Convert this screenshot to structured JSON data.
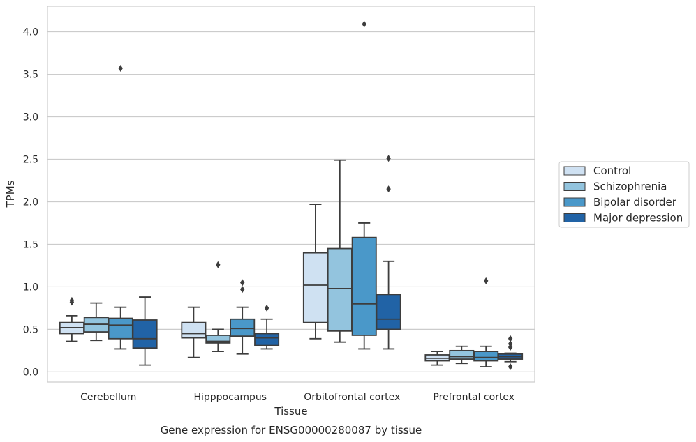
{
  "chart_data": {
    "type": "boxplot",
    "title": "",
    "caption": "Gene expression for ENSG00000280087 by tissue",
    "xlabel": "Tissue",
    "ylabel": "TPMs",
    "ylim": [
      -0.12,
      4.3
    ],
    "yticks": [
      "0.0",
      "0.5",
      "1.0",
      "1.5",
      "2.0",
      "2.5",
      "3.0",
      "3.5",
      "4.0"
    ],
    "grid": "horizontal",
    "legend_position": "right",
    "categories": [
      "Cerebellum",
      "Hipppocampus",
      "Orbitofrontal cortex",
      "Prefrontal cortex"
    ],
    "series": [
      {
        "name": "Control",
        "color": "#cfe1f2",
        "boxes": [
          {
            "whisker_low": 0.36,
            "q1": 0.45,
            "median": 0.52,
            "q3": 0.58,
            "whisker_high": 0.66,
            "outliers": [
              0.82,
              0.84
            ]
          },
          {
            "whisker_low": 0.17,
            "q1": 0.4,
            "median": 0.45,
            "q3": 0.58,
            "whisker_high": 0.76,
            "outliers": []
          },
          {
            "whisker_low": 0.39,
            "q1": 0.58,
            "median": 1.02,
            "q3": 1.4,
            "whisker_high": 1.97,
            "outliers": []
          },
          {
            "whisker_low": 0.08,
            "q1": 0.13,
            "median": 0.16,
            "q3": 0.2,
            "whisker_high": 0.24,
            "outliers": []
          }
        ]
      },
      {
        "name": "Schizophrenia",
        "color": "#93c4de",
        "boxes": [
          {
            "whisker_low": 0.37,
            "q1": 0.47,
            "median": 0.56,
            "q3": 0.64,
            "whisker_high": 0.81,
            "outliers": []
          },
          {
            "whisker_low": 0.24,
            "q1": 0.34,
            "median": 0.36,
            "q3": 0.43,
            "whisker_high": 0.5,
            "outliers": [
              1.26
            ]
          },
          {
            "whisker_low": 0.35,
            "q1": 0.48,
            "median": 0.98,
            "q3": 1.45,
            "whisker_high": 2.49,
            "outliers": []
          },
          {
            "whisker_low": 0.1,
            "q1": 0.15,
            "median": 0.18,
            "q3": 0.25,
            "whisker_high": 0.3,
            "outliers": []
          }
        ]
      },
      {
        "name": "Bipolar disorder",
        "color": "#4a98c9",
        "boxes": [
          {
            "whisker_low": 0.27,
            "q1": 0.39,
            "median": 0.55,
            "q3": 0.63,
            "whisker_high": 0.76,
            "outliers": [
              3.57
            ]
          },
          {
            "whisker_low": 0.21,
            "q1": 0.42,
            "median": 0.51,
            "q3": 0.62,
            "whisker_high": 0.76,
            "outliers": [
              0.97,
              1.05
            ]
          },
          {
            "whisker_low": 0.27,
            "q1": 0.43,
            "median": 0.8,
            "q3": 1.58,
            "whisker_high": 1.75,
            "outliers": [
              4.09
            ]
          },
          {
            "whisker_low": 0.06,
            "q1": 0.13,
            "median": 0.17,
            "q3": 0.24,
            "whisker_high": 0.3,
            "outliers": [
              1.07
            ]
          }
        ]
      },
      {
        "name": "Major depression",
        "color": "#2163a6",
        "boxes": [
          {
            "whisker_low": 0.08,
            "q1": 0.28,
            "median": 0.39,
            "q3": 0.61,
            "whisker_high": 0.88,
            "outliers": []
          },
          {
            "whisker_low": 0.27,
            "q1": 0.31,
            "median": 0.4,
            "q3": 0.45,
            "whisker_high": 0.62,
            "outliers": [
              0.75
            ]
          },
          {
            "whisker_low": 0.27,
            "q1": 0.5,
            "median": 0.62,
            "q3": 0.91,
            "whisker_high": 1.3,
            "outliers": [
              2.15,
              2.51
            ]
          },
          {
            "whisker_low": 0.12,
            "q1": 0.15,
            "median": 0.18,
            "q3": 0.21,
            "whisker_high": 0.22,
            "outliers": [
              0.06,
              0.29,
              0.33,
              0.39
            ]
          }
        ]
      }
    ]
  }
}
